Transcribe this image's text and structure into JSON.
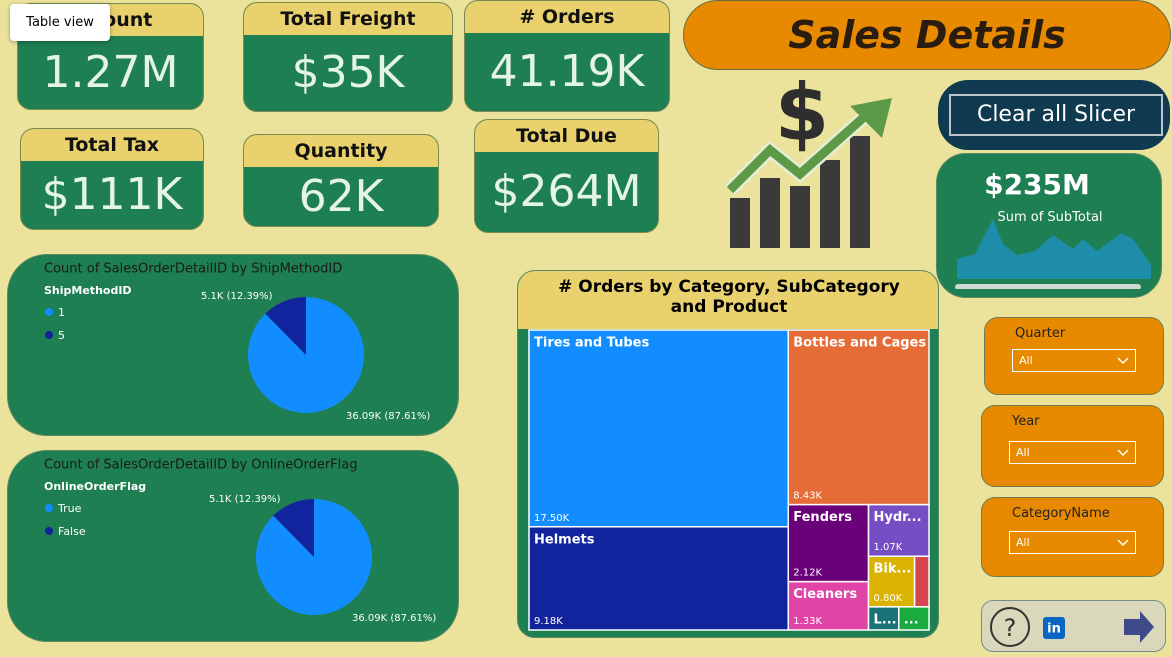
{
  "tooltip": "Table view",
  "cards": [
    {
      "title": "Amount",
      "value": "1.27M"
    },
    {
      "title": "Total Freight",
      "value": "$35K"
    },
    {
      "title": "# Orders",
      "value": "41.19K"
    },
    {
      "title": "Total Tax",
      "value": "$111K"
    },
    {
      "title": "Quantity",
      "value": "62K"
    },
    {
      "title": "Total Due",
      "value": "$264M"
    }
  ],
  "header": {
    "title": "Sales Details"
  },
  "button": "Clear all Slicer",
  "subtotal_card": {
    "value": "$235M",
    "label": "Sum of SubTotal"
  },
  "pies": [
    {
      "type": "pie",
      "title": "Count of SalesOrderDetailID by ShipMethodID",
      "legend_title": "ShipMethodID",
      "categories": [
        "1",
        "5"
      ],
      "values": [
        36090,
        5100
      ],
      "value_labels": [
        "36.09K (87.61%)",
        "5.1K (12.39%)"
      ],
      "colors": [
        "#118dff",
        "#12239e"
      ]
    },
    {
      "type": "pie",
      "title": "Count of SalesOrderDetailID by OnlineOrderFlag",
      "legend_title": "OnlineOrderFlag",
      "categories": [
        "True",
        "False"
      ],
      "values": [
        36090,
        5100
      ],
      "value_labels": [
        "36.09K (87.61%)",
        "5.1K (12.39%)"
      ],
      "colors": [
        "#118dff",
        "#12239e"
      ]
    }
  ],
  "treemap": {
    "type": "treemap",
    "title": "# Orders by Category, SubCategory and Product",
    "tiles": [
      {
        "name": "Tires and Tubes",
        "value": 17500,
        "value_label": "17.50K",
        "color": "#118dff"
      },
      {
        "name": "Helmets",
        "value": 9180,
        "value_label": "9.18K",
        "color": "#12239e"
      },
      {
        "name": "Bottles and Cages",
        "value": 8430,
        "value_label": "8.43K",
        "color": "#e66c37"
      },
      {
        "name": "Fenders",
        "value": 2120,
        "value_label": "2.12K",
        "color": "#6b007b"
      },
      {
        "name": "Cleaners",
        "value": 1330,
        "value_label": "1.33K",
        "color": "#e044a7"
      },
      {
        "name": "Hydr...",
        "value": 1070,
        "value_label": "1.07K",
        "color": "#744ec2"
      },
      {
        "name": "Bik...",
        "value": 800,
        "value_label": "0.80K",
        "color": "#d9b300"
      },
      {
        "value": 250,
        "color": "#d64550"
      },
      {
        "name": "L...",
        "value": 240,
        "color": "#197278"
      },
      {
        "name": "...",
        "value": 240,
        "color": "#1aab40"
      }
    ]
  },
  "slicers": [
    {
      "label": "Quarter",
      "selected": "All"
    },
    {
      "label": "Year",
      "selected": "All"
    },
    {
      "label": "CategoryName",
      "selected": "All"
    }
  ]
}
